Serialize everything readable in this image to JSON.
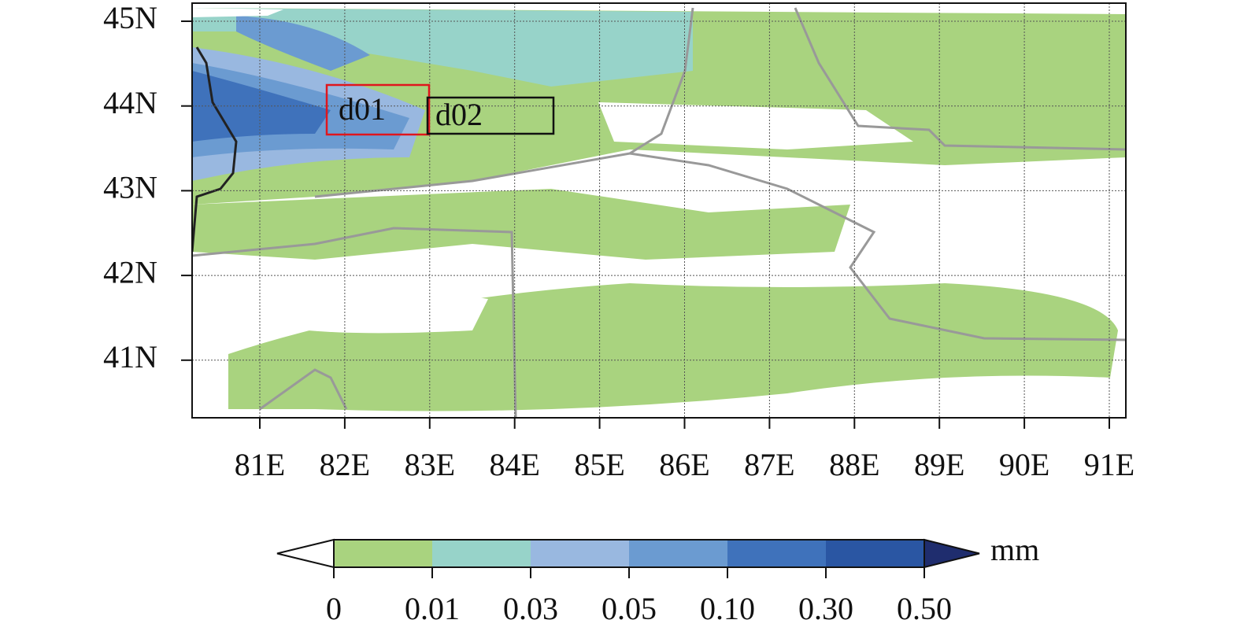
{
  "map": {
    "lat_labels": [
      "45N",
      "44N",
      "43N",
      "42N",
      "41N"
    ],
    "lon_labels": [
      "81E",
      "82E",
      "83E",
      "84E",
      "85E",
      "86E",
      "87E",
      "88E",
      "89E",
      "90E",
      "91E"
    ],
    "boxes": [
      {
        "label": "d01",
        "color": "#e0161d"
      },
      {
        "label": "d02",
        "color": "#111111"
      }
    ]
  },
  "colorbar": {
    "ticks": [
      "0",
      "0.01",
      "0.03",
      "0.05",
      "0.10",
      "0.30",
      "0.50"
    ],
    "unit": "mm",
    "colors": [
      "#ffffff",
      "#a9d37f",
      "#97d3c9",
      "#99b8e0",
      "#6b9bd1",
      "#3f72bb",
      "#2a56a3",
      "#1f2d6e"
    ]
  }
}
